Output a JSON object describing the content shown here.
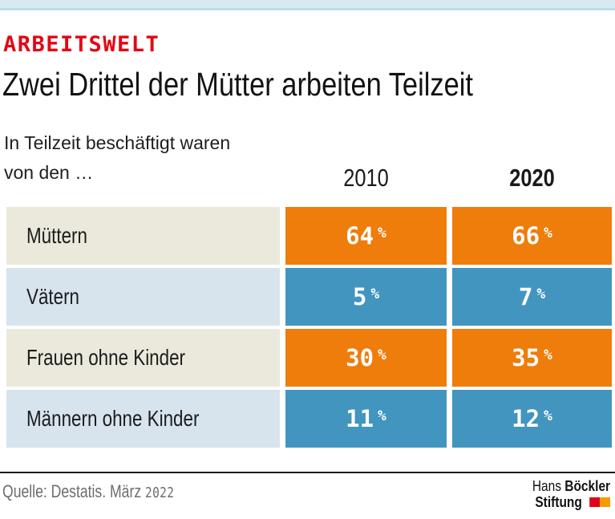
{
  "page": {
    "kicker": "ARBEITSWELT",
    "title": "Zwei Drittel der Mütter arbeiten Teilzeit",
    "subtitle_line1": "In Teilzeit beschäftigt waren",
    "subtitle_line2": "von den …"
  },
  "table": {
    "year_headers": {
      "col1": "2010",
      "col2": "2020"
    },
    "unit": "%",
    "rows": [
      {
        "label": "Müttern",
        "y2010": "64",
        "y2020": "66",
        "theme": "orange"
      },
      {
        "label": "Vätern",
        "y2010": "5",
        "y2020": "7",
        "theme": "blue"
      },
      {
        "label": "Frauen ohne Kinder",
        "y2010": "30",
        "y2020": "35",
        "theme": "orange"
      },
      {
        "label": "Männern ohne Kinder",
        "y2010": "11",
        "y2020": "12",
        "theme": "blue"
      }
    ]
  },
  "footer": {
    "source_text": "Quelle: Destatis. März",
    "source_year": "2022",
    "logo": {
      "line1_regular": "Hans",
      "line1_bold": "Böckler",
      "line2_bold": "Stiftung"
    }
  },
  "colors": {
    "accent_red": "#e40613",
    "orange_cell": "#ee7d0b",
    "blue_cell": "#4295bf",
    "label_cream": "#ebe9dc",
    "label_lightblue": "#d7e4ee",
    "topbar_blue": "#d7e9f1",
    "source_gray": "#6b6d70",
    "logo_red": "#e2001a",
    "logo_orange": "#f59c00"
  },
  "chart_data": {
    "type": "table",
    "title": "Zwei Drittel der Mütter arbeiten Teilzeit",
    "subtitle": "In Teilzeit beschäftigt waren von den …",
    "categories": [
      "Müttern",
      "Vätern",
      "Frauen ohne Kinder",
      "Männern ohne Kinder"
    ],
    "series": [
      {
        "name": "2010",
        "values": [
          64,
          5,
          30,
          11
        ]
      },
      {
        "name": "2020",
        "values": [
          66,
          7,
          35,
          12
        ]
      }
    ],
    "unit": "%",
    "source": "Quelle: Destatis. März 2022",
    "legend_position": "column-headers",
    "grid": false
  }
}
